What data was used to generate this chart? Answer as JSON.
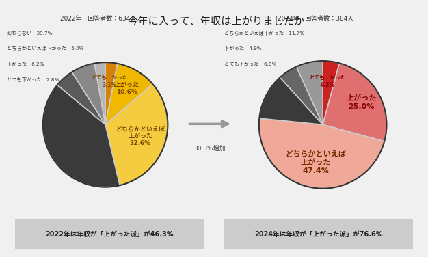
{
  "title": "今年に入って、年収は上がりましたか",
  "title_fontsize": 11,
  "bg_color": "#f0f0f0",
  "chart_bg": "#ffffff",
  "left_title": "2022年   回答者数：634人",
  "right_title": "2024年   回答者数：384人",
  "left_slices": [
    3.1,
    10.6,
    32.6,
    39.7,
    5.0,
    6.2,
    2.8
  ],
  "left_colors_actual": [
    "#d4820a",
    "#f0b800",
    "#f5cc40",
    "#3a3a3a",
    "#5a5a5a",
    "#888888",
    "#b5b5b5"
  ],
  "left_legend_labels": [
    "変わらない　39.7%",
    "どちらかといえば下がった　5.0%",
    "下がった　6.2%",
    "とても下がった　2.8%"
  ],
  "left_legend_colors": [
    "#3a3a3a",
    "#5a5a5a",
    "#888888",
    "#b5b5b5"
  ],
  "right_slices": [
    4.2,
    25.0,
    47.4,
    11.7,
    4.9,
    6.8
  ],
  "right_colors_actual": [
    "#cc2222",
    "#e07070",
    "#f0a898",
    "#3a3a3a",
    "#666666",
    "#999999"
  ],
  "right_legend_labels": [
    "どちらかといえば下がった　11.7%",
    "下がった　4.9%",
    "とても下がった　6.8%"
  ],
  "right_legend_colors": [
    "#3a3a3a",
    "#666666",
    "#999999"
  ],
  "arrow_text": "30.3%増加",
  "footer_left": "2022年は年収が「上がった派」が46.3%",
  "footer_right": "2024年は年収が「上がった派」が76.6%"
}
